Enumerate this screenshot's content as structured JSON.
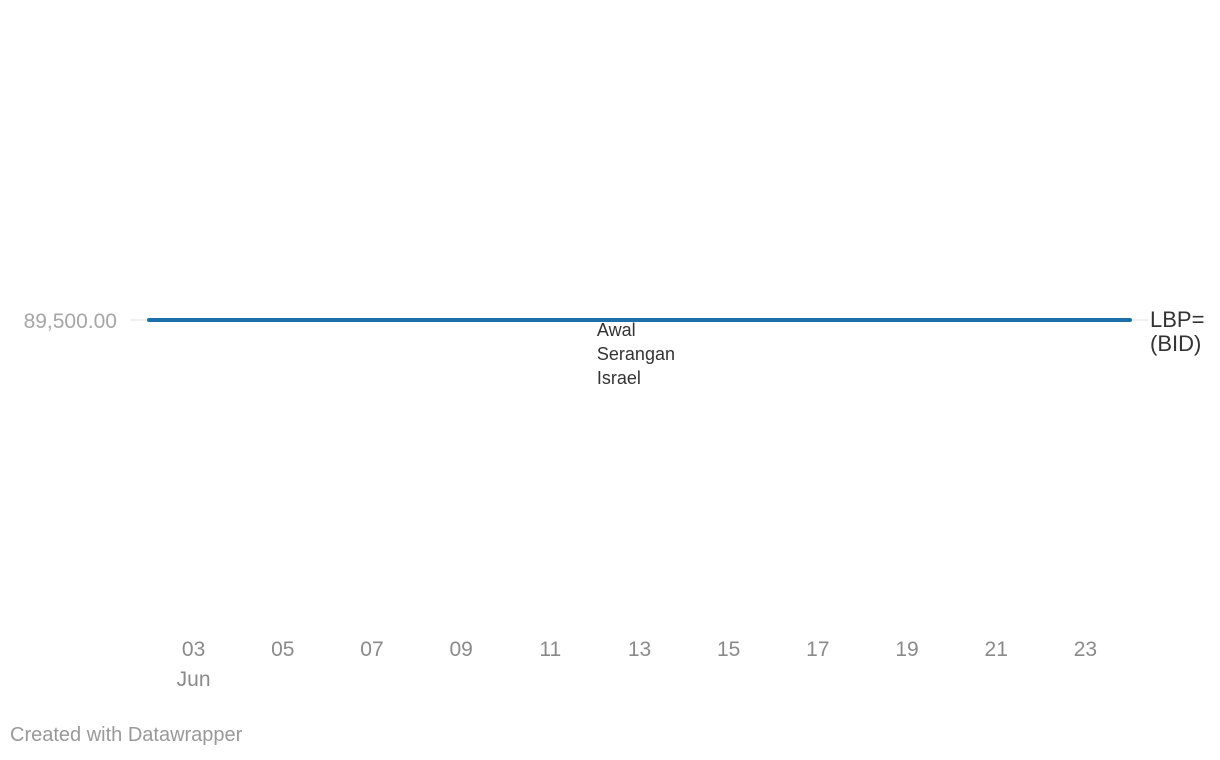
{
  "chart_data": {
    "type": "line",
    "x": [
      "2024-06-02",
      "2024-06-03",
      "2024-06-04",
      "2024-06-05",
      "2024-06-06",
      "2024-06-07",
      "2024-06-08",
      "2024-06-09",
      "2024-06-10",
      "2024-06-11",
      "2024-06-12",
      "2024-06-13",
      "2024-06-14",
      "2024-06-15",
      "2024-06-16",
      "2024-06-17",
      "2024-06-18",
      "2024-06-19",
      "2024-06-20",
      "2024-06-21",
      "2024-06-22",
      "2024-06-23",
      "2024-06-24"
    ],
    "series": [
      {
        "name": "LBP= (BID)",
        "label_lines": [
          "LBP=",
          "(BID)"
        ],
        "color": "#1d6fa9",
        "values": [
          89500,
          89500,
          89500,
          89500,
          89500,
          89500,
          89500,
          89500,
          89500,
          89500,
          89500,
          89500,
          89500,
          89500,
          89500,
          89500,
          89500,
          89500,
          89500,
          89500,
          89500,
          89500,
          89500
        ]
      }
    ],
    "x_ticks": [
      {
        "date": "2024-06-03",
        "label": "03",
        "sublabel": "Jun"
      },
      {
        "date": "2024-06-05",
        "label": "05"
      },
      {
        "date": "2024-06-07",
        "label": "07"
      },
      {
        "date": "2024-06-09",
        "label": "09"
      },
      {
        "date": "2024-06-11",
        "label": "11"
      },
      {
        "date": "2024-06-13",
        "label": "13"
      },
      {
        "date": "2024-06-15",
        "label": "15"
      },
      {
        "date": "2024-06-17",
        "label": "17"
      },
      {
        "date": "2024-06-19",
        "label": "19"
      },
      {
        "date": "2024-06-21",
        "label": "21"
      },
      {
        "date": "2024-06-23",
        "label": "23"
      }
    ],
    "y_ticks": [
      {
        "value": 89500,
        "label": "89,500.00"
      }
    ],
    "annotation": {
      "date": "2024-06-12",
      "value": 89500,
      "lines": [
        "Awal",
        "Serangan",
        "Israel"
      ]
    },
    "xlabel": "",
    "ylabel": "",
    "grid": true
  },
  "footer": {
    "credit": "Created with Datawrapper"
  }
}
